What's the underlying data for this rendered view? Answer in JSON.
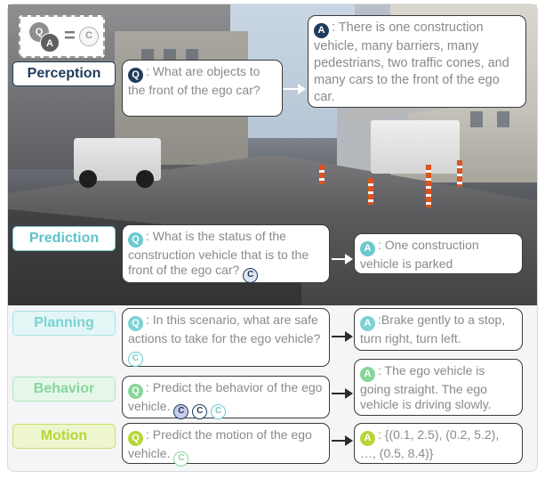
{
  "legend": {
    "q": "Q",
    "a": "A",
    "equals": "=",
    "c": "C"
  },
  "colors": {
    "perception": "#1f3c5a",
    "prediction": "#6cc9cf",
    "planning": "#7bd3d3",
    "behavior": "#86d69a",
    "motion": "#b7d63a"
  },
  "perception": {
    "label": "Perception",
    "q_badge": "Q",
    "question": ": What are objects to the front of the ego car?",
    "a_badge": "A",
    "answer": ": There is one construction vehicle, many barriers, many pedestrians, two traffic cones, and many cars to the front of the ego car."
  },
  "prediction": {
    "label": "Prediction",
    "q_badge": "Q",
    "question": ": What is the status of the construction vehicle that is to the front of the ego car?",
    "q_ref": "C",
    "a_badge": "A",
    "answer": ": One construction vehicle is parked"
  },
  "planning": {
    "label": "Planning",
    "q_badge": "Q",
    "question": ": In this scenario, what are safe actions to take for the ego vehicle?",
    "q_ref": "C",
    "a_badge": "A",
    "answer": ":Brake gently to a stop, turn right, turn left."
  },
  "behavior": {
    "label": "Behavior",
    "q_badge": "Q",
    "question": ": Predict the behavior of the ego vehicle.",
    "q_refs": [
      "C",
      "C",
      "C"
    ],
    "a_badge": "A",
    "answer": ": The ego vehicle is going straight. The ego vehicle is driving slowly."
  },
  "motion": {
    "label": "Motion",
    "q_badge": "Q",
    "question": ": Predict the motion of the ego vehicle.",
    "q_ref": "C",
    "a_badge": "A",
    "answer": ": {(0.1, 2.5), (0.2, 5.2), …, (0.5, 8.4)}"
  }
}
